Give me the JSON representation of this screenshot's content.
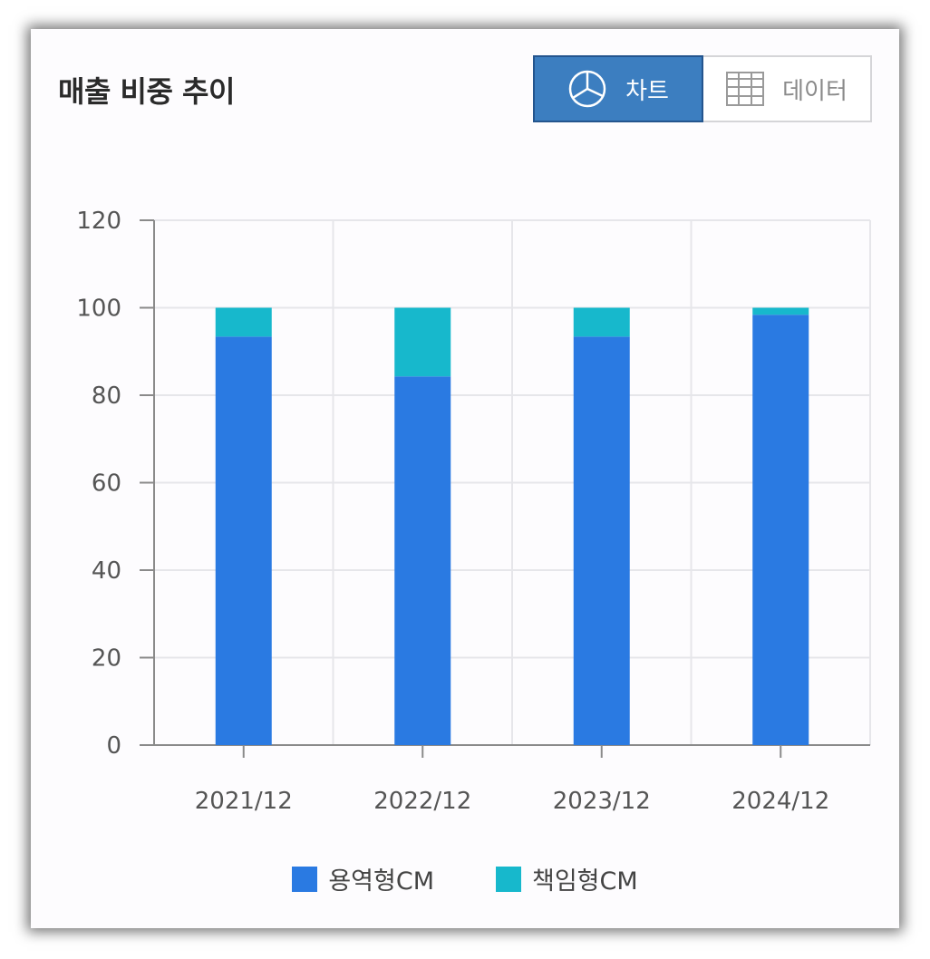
{
  "header": {
    "title": "매출 비중 추이"
  },
  "toggle": {
    "chart_label": "차트",
    "data_label": "데이터",
    "active": "chart",
    "chart_icon": "pie-chart-icon",
    "data_icon": "grid-table-icon"
  },
  "colors": {
    "series1": "#2a7ae2",
    "series2": "#17b8cc",
    "toggle_active": "#3c7ec0"
  },
  "chart_data": {
    "type": "bar",
    "stacked": true,
    "categories": [
      "2021/12",
      "2022/12",
      "2023/12",
      "2024/12"
    ],
    "series": [
      {
        "name": "용역형CM",
        "values": [
          93.4,
          84.3,
          93.4,
          98.4
        ]
      },
      {
        "name": "책임형CM",
        "values": [
          6.6,
          15.7,
          6.6,
          1.6
        ]
      }
    ],
    "title": "매출 비중 추이",
    "xlabel": "",
    "ylabel": "",
    "ylim": [
      0,
      120
    ],
    "yticks": [
      "0",
      "20",
      "40",
      "60",
      "80",
      "100",
      "120"
    ],
    "grid": true,
    "legend": "bottom-center"
  }
}
